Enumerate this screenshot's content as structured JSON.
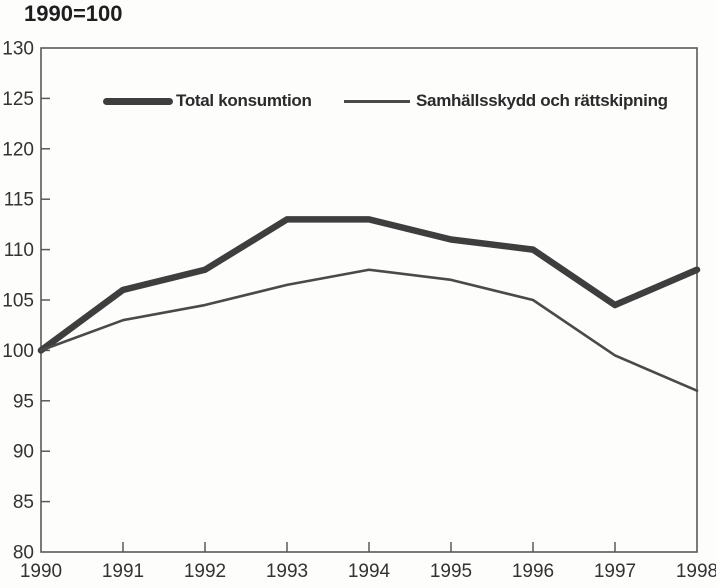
{
  "chart_data": {
    "type": "line",
    "title": "1990=100",
    "xlabel": "",
    "ylabel": "",
    "x": [
      1990,
      1991,
      1992,
      1993,
      1994,
      1995,
      1996,
      1997,
      1998
    ],
    "ylim": [
      80,
      130
    ],
    "y_ticks": [
      130,
      125,
      120,
      115,
      110,
      105,
      100,
      95,
      90,
      85,
      80
    ],
    "grid": false,
    "legend_position": "top-inside",
    "series": [
      {
        "name": "Total konsumtion",
        "style": "thick",
        "values": [
          100,
          106,
          108,
          113,
          113,
          111,
          110,
          104.5,
          108
        ]
      },
      {
        "name": "Samhällsskydd och rättskipning",
        "style": "thin",
        "values": [
          100,
          103,
          104.5,
          106.5,
          108,
          107,
          105,
          99.5,
          96
        ]
      }
    ],
    "colors": {
      "thick_line": "#3e3e3e",
      "thin_line": "#4a4a4a",
      "axis": "#5a5a5a",
      "text": "#333333",
      "background": "#fdfdfc"
    }
  }
}
